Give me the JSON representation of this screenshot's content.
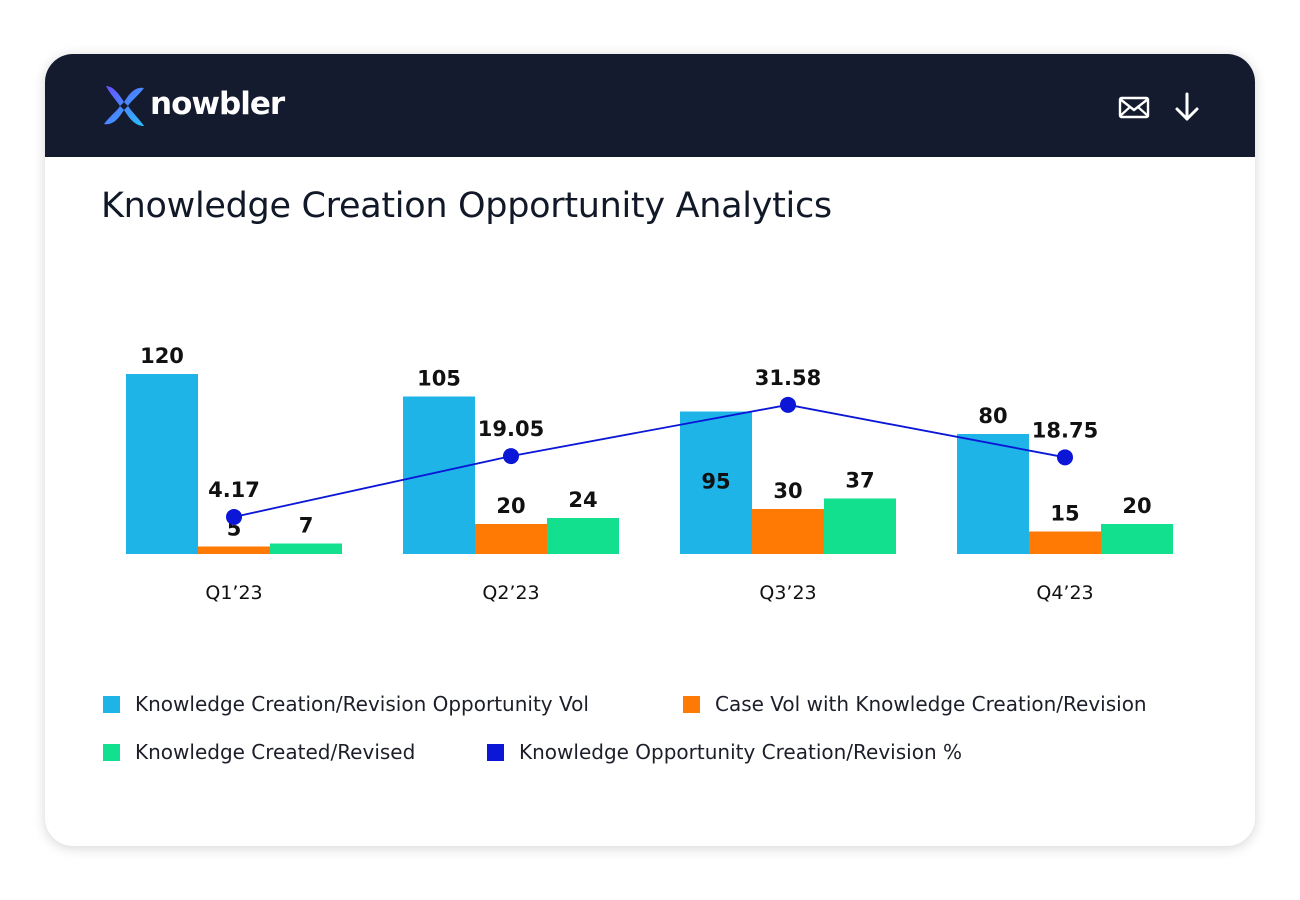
{
  "brand": {
    "name": "nowbler"
  },
  "header": {
    "mail_icon": "mail-icon",
    "download_icon": "download-icon"
  },
  "page_title": "Knowledge Creation Opportunity Analytics",
  "colors": {
    "header_bg": "#141b2e",
    "opportunity_vol": "#1eb4e8",
    "case_vol": "#ff7a05",
    "created_revised": "#12e08e",
    "percent_line": "#0b16d6"
  },
  "chart_data": {
    "type": "bar",
    "title": "Knowledge Creation Opportunity Analytics",
    "categories": [
      "Q1’23",
      "Q2’23",
      "Q3’23",
      "Q4’23"
    ],
    "series": [
      {
        "name": "Knowledge Creation/Revision Opportunity Vol",
        "type": "bar",
        "color": "#1eb4e8",
        "values": [
          120,
          105,
          95,
          80
        ],
        "labels": [
          "120",
          "105",
          "95",
          "80"
        ]
      },
      {
        "name": "Case Vol with Knowledge Creation/Revision",
        "type": "bar",
        "color": "#ff7a05",
        "values": [
          5,
          20,
          30,
          15
        ],
        "labels": [
          "5",
          "20",
          "30",
          "15"
        ]
      },
      {
        "name": "Knowledge Created/Revised",
        "type": "bar",
        "color": "#12e08e",
        "values": [
          7,
          24,
          37,
          20
        ],
        "labels": [
          "7",
          "24",
          "37",
          "20"
        ]
      },
      {
        "name": "Knowledge Opportunity Creation/Revision %",
        "type": "line",
        "color": "#0b16d6",
        "values": [
          4.17,
          19.05,
          31.58,
          18.75
        ],
        "labels": [
          "4.17",
          "19.05",
          "31.58",
          "18.75"
        ]
      }
    ],
    "bar_axis_range": [
      0,
      120
    ],
    "line_axis_range": [
      0,
      50
    ],
    "grid": false,
    "legend_position": "bottom"
  }
}
